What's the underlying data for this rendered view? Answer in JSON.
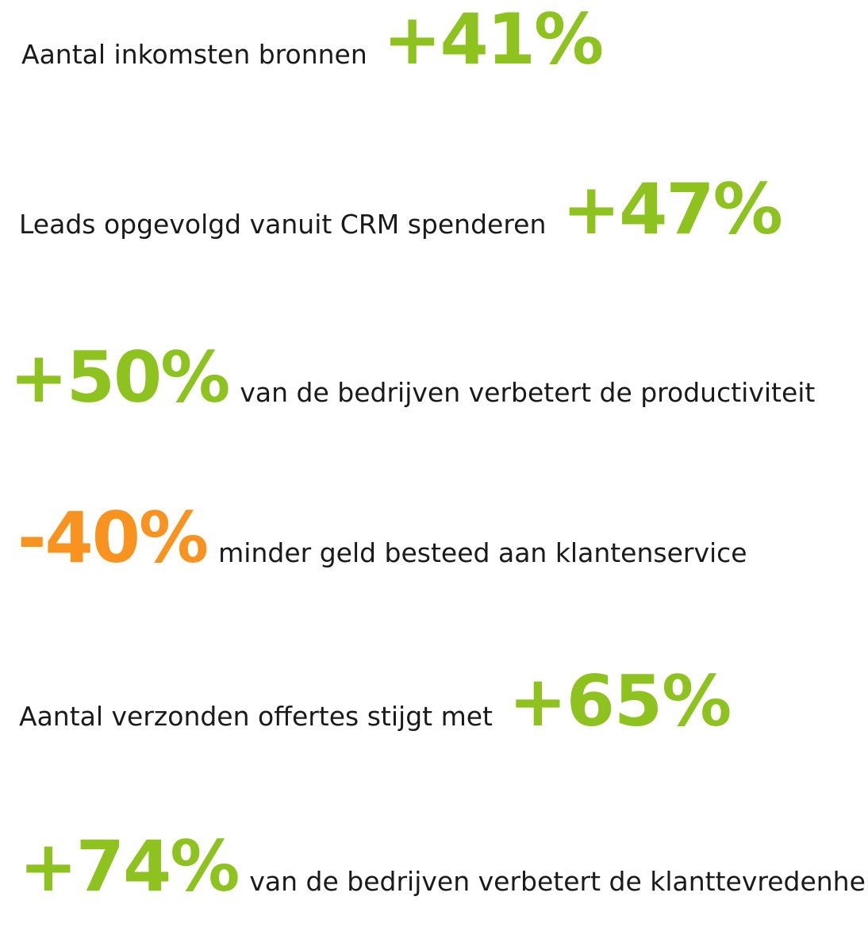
{
  "colors": {
    "positive": "#8dc21f",
    "negative": "#f7931e",
    "text": "#1a1a1a"
  },
  "stats": [
    {
      "label": "Aantal inkomsten bronnen",
      "value": "+41%"
    },
    {
      "label": "Leads opgevolgd vanuit CRM spenderen",
      "value": "+47%"
    },
    {
      "value": "+50%",
      "label": "van de bedrijven verbetert de productiviteit"
    },
    {
      "value": "-40%",
      "label": "minder geld besteed aan klantenservice"
    },
    {
      "label": "Aantal verzonden offertes stijgt met",
      "value": "+65%"
    },
    {
      "value": "+74%",
      "label": "van de bedrijven verbetert de klanttevredenheid"
    }
  ]
}
